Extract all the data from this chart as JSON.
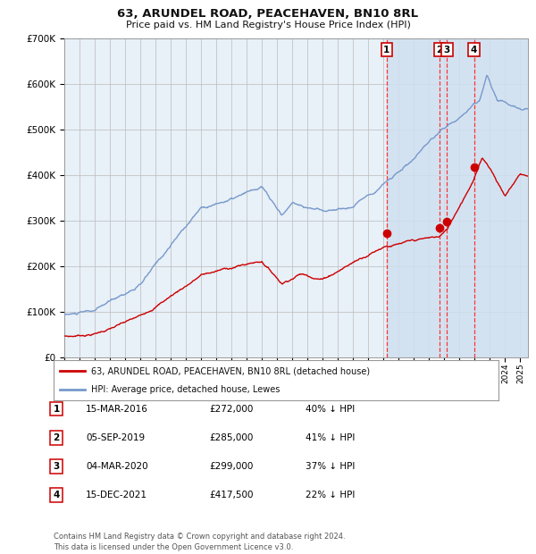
{
  "title": "63, ARUNDEL ROAD, PEACEHAVEN, BN10 8RL",
  "subtitle": "Price paid vs. HM Land Registry's House Price Index (HPI)",
  "background_color": "#ffffff",
  "plot_bg_color": "#e8f0f8",
  "grid_color": "#bbbbbb",
  "hpi_color": "#7799cc",
  "price_color": "#cc0000",
  "sale_marker_color": "#cc0000",
  "vline_color": "#ff3333",
  "shade_color": "#d0e0f0",
  "transactions": [
    {
      "date_num": 2016.2,
      "price": 272000,
      "label": "1"
    },
    {
      "date_num": 2019.67,
      "price": 285000,
      "label": "2"
    },
    {
      "date_num": 2020.17,
      "price": 299000,
      "label": "3"
    },
    {
      "date_num": 2021.95,
      "price": 417500,
      "label": "4"
    }
  ],
  "table_rows": [
    {
      "num": "1",
      "date": "15-MAR-2016",
      "price": "£272,000",
      "pct": "40% ↓ HPI"
    },
    {
      "num": "2",
      "date": "05-SEP-2019",
      "price": "£285,000",
      "pct": "41% ↓ HPI"
    },
    {
      "num": "3",
      "date": "04-MAR-2020",
      "price": "£299,000",
      "pct": "37% ↓ HPI"
    },
    {
      "num": "4",
      "date": "15-DEC-2021",
      "price": "£417,500",
      "pct": "22% ↓ HPI"
    }
  ],
  "legend_line1": "63, ARUNDEL ROAD, PEACEHAVEN, BN10 8RL (detached house)",
  "legend_line2": "HPI: Average price, detached house, Lewes",
  "footer": "Contains HM Land Registry data © Crown copyright and database right 2024.\nThis data is licensed under the Open Government Licence v3.0.",
  "xmin": 1995,
  "xmax": 2025.5,
  "ymin": 0,
  "ymax": 700000,
  "yticks": [
    0,
    100000,
    200000,
    300000,
    400000,
    500000,
    600000,
    700000
  ]
}
